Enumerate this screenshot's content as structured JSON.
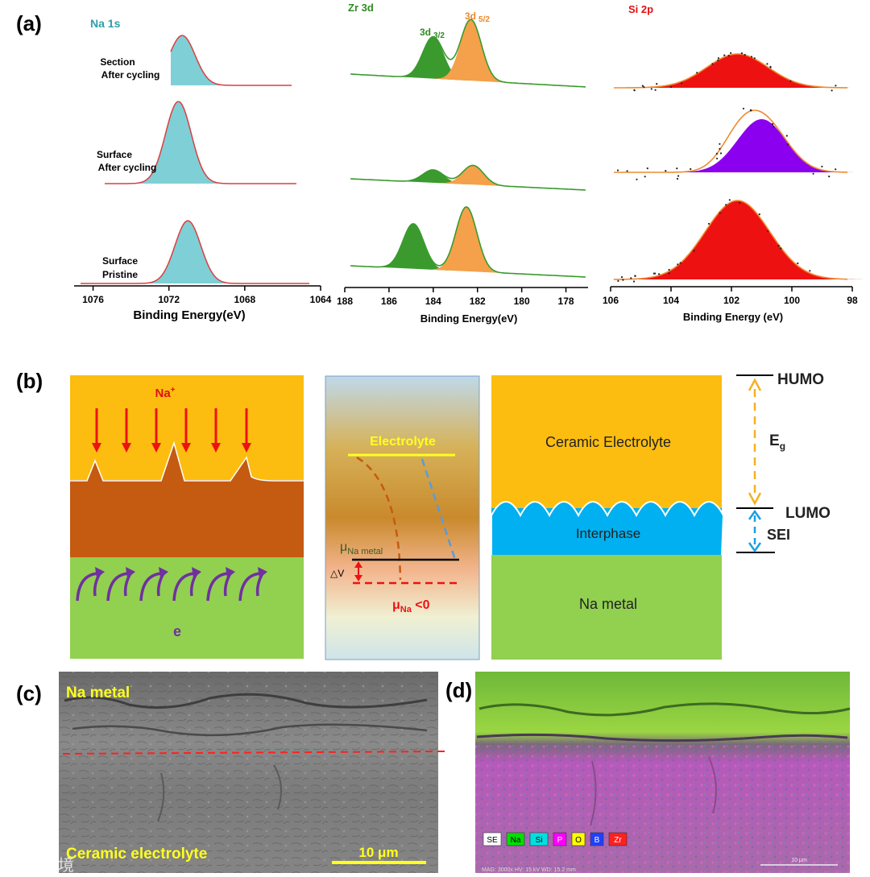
{
  "panel_labels": {
    "a": "(a)",
    "b": "(b)",
    "c": "(c)",
    "d": "(d)"
  },
  "panel_a": {
    "na1s": {
      "title": "Na 1s",
      "row_labels": [
        [
          "Section",
          "After cycling"
        ],
        [
          "Surface",
          "After cycling"
        ],
        [
          "Surface",
          "Pristine"
        ]
      ],
      "x_ticks": [
        "1076",
        "1072",
        "1068",
        "1064"
      ],
      "xlabel": "Binding Energy(eV)"
    },
    "zr3d": {
      "title": "Zr 3d",
      "peak_labels": {
        "p32_main": "3d",
        "p32_sub": "3/2",
        "p52_main": "3d",
        "p52_sub": "5/2"
      },
      "x_ticks": [
        "188",
        "186",
        "184",
        "182",
        "180",
        "178"
      ],
      "xlabel": "Binding Energy(eV)"
    },
    "si2p": {
      "title": "Si 2p",
      "x_ticks": [
        "106",
        "104",
        "102",
        "100",
        "98"
      ],
      "xlabel": "Binding Energy (eV)"
    },
    "colors": {
      "na": "#7fcfd6",
      "zr32": "#3a9a2e",
      "zr52": "#f5a04a",
      "si_red": "#ee1111",
      "si_purple": "#8b00ee",
      "fit": "#d84040",
      "bg_green": "#3a9a2e"
    }
  },
  "chart_data": [
    {
      "type": "area",
      "title": "Na 1s",
      "xlabel": "Binding Energy(eV)",
      "xlim": [
        1077,
        1064
      ],
      "x_ticks": [
        1076,
        1072,
        1068,
        1064
      ],
      "series": [
        {
          "name": "Section After cycling",
          "peak_center": 1071.3,
          "fwhm": 1.6
        },
        {
          "name": "Surface After cycling",
          "peak_center": 1071.5,
          "fwhm": 1.6
        },
        {
          "name": "Surface Pristine",
          "peak_center": 1071.0,
          "fwhm": 1.8
        }
      ]
    },
    {
      "type": "area",
      "title": "Zr 3d",
      "xlabel": "Binding Energy(eV)",
      "xlim": [
        188,
        177
      ],
      "x_ticks": [
        188,
        186,
        184,
        182,
        180,
        178
      ],
      "series": [
        {
          "name": "Section After cycling",
          "peaks": [
            {
              "label": "3d 3/2",
              "center": 184.0
            },
            {
              "label": "3d 5/2",
              "center": 182.3
            }
          ]
        },
        {
          "name": "Surface After cycling",
          "peaks": [
            {
              "label": "3d 3/2",
              "center": 184.0
            },
            {
              "label": "3d 5/2",
              "center": 182.2
            }
          ]
        },
        {
          "name": "Surface Pristine",
          "peaks": [
            {
              "label": "3d 3/2",
              "center": 184.9
            },
            {
              "label": "3d 5/2",
              "center": 182.5
            }
          ]
        }
      ]
    },
    {
      "type": "area",
      "title": "Si 2p",
      "xlabel": "Binding Energy (eV)",
      "xlim": [
        106,
        98
      ],
      "x_ticks": [
        106,
        104,
        102,
        100,
        98
      ],
      "series": [
        {
          "name": "Section After cycling",
          "peaks": [
            {
              "center": 101.8
            }
          ]
        },
        {
          "name": "Surface After cycling",
          "peaks": [
            {
              "center": 101.8
            },
            {
              "center": 101.0
            }
          ]
        },
        {
          "name": "Surface Pristine",
          "peaks": [
            {
              "center": 101.8
            }
          ]
        }
      ]
    }
  ],
  "panel_b": {
    "left": {
      "ion_label": "Na",
      "ion_sup": "+",
      "electron_label": "e"
    },
    "middle": {
      "electrolyte": "Electrolyte",
      "mu_metal_main": "μ",
      "mu_metal_sub": "Na metal",
      "dv_label": "△V",
      "mu_na_main": "μ",
      "mu_na_sub": "Na",
      "mu_na_tail": " <0"
    },
    "right": {
      "ceramic": "Ceramic Electrolyte",
      "interphase": "Interphase",
      "metal": "Na metal",
      "humo": "HUMO",
      "lumo": "LUMO",
      "eg_main": "E",
      "eg_sub": "g",
      "sei": "SEI"
    },
    "colors": {
      "ceramic": "#fdbd10",
      "brown": "#c55a11",
      "green": "#92d050",
      "blue": "#00b0f0",
      "ion_arrow": "#ee1111",
      "electron_arrow": "#7030a0"
    }
  },
  "panel_c": {
    "top_label": "Na metal",
    "bottom_label": "Ceramic electrolyte",
    "scale_label": "10 μm"
  },
  "panel_d": {
    "legend": [
      "SE",
      "Na",
      "Si",
      "P",
      "O",
      "B",
      "Zr"
    ],
    "legend_colors": [
      "#ffffff",
      "#00e000",
      "#00e0e0",
      "#ff00ff",
      "#ffff00",
      "#2040ff",
      "#ff2020"
    ],
    "footer": "MAG: 3000x   HV: 15 kV   WD: 15.2 mm",
    "scale_label": "10 μm"
  },
  "watermark": "大数跨境"
}
